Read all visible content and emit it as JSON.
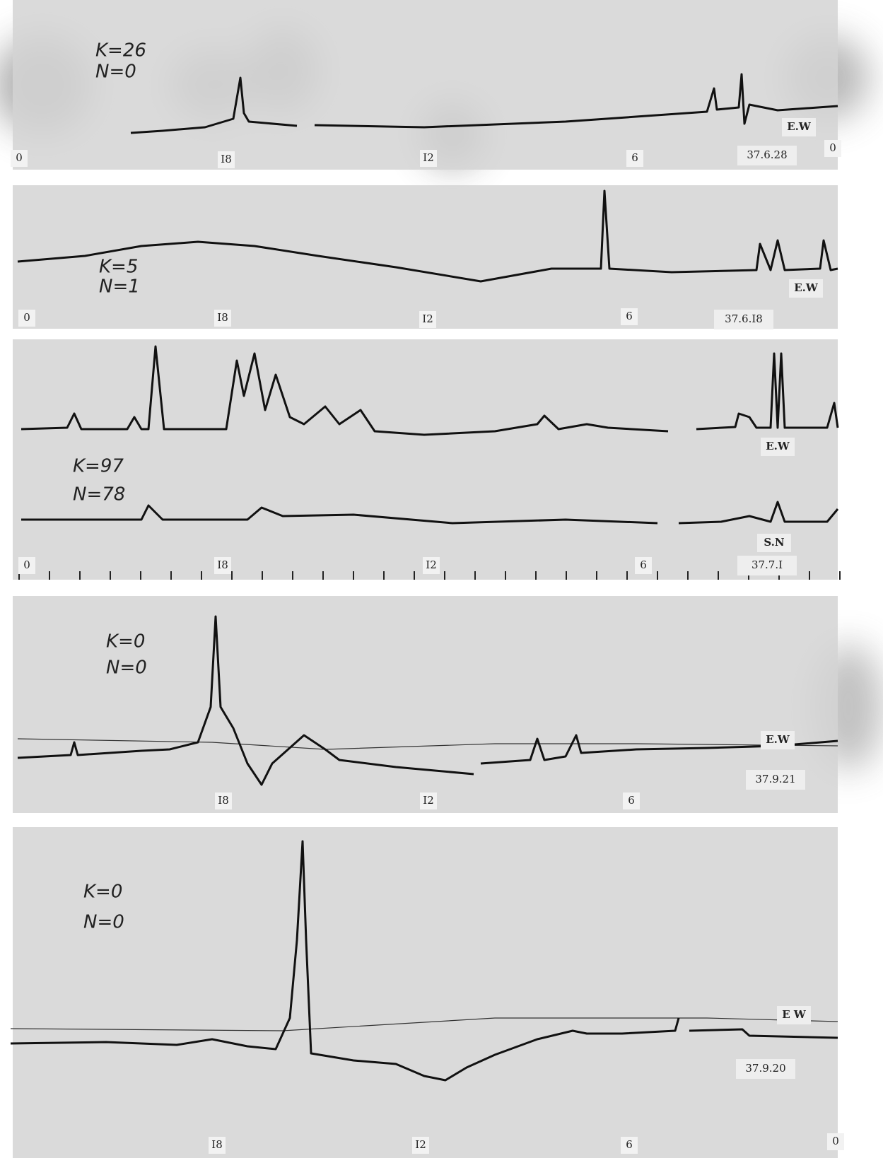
{
  "panels": [
    {
      "annotations": [
        "K=26",
        "N=0"
      ],
      "components": [
        "E.W"
      ],
      "hour_labels": [
        "0",
        "I8",
        "I2",
        "6",
        "0"
      ],
      "date": "37.6.28"
    },
    {
      "annotations": [
        "K=5",
        "N=1"
      ],
      "components": [
        "E.W"
      ],
      "hour_labels": [
        "0",
        "I8",
        "I2",
        "6"
      ],
      "date": "37.6.I8"
    },
    {
      "annotations": [
        "K=97",
        "N=78"
      ],
      "components": [
        "E.W",
        "S.N"
      ],
      "hour_labels": [
        "0",
        "I8",
        "I2",
        "6"
      ],
      "date": "37.7.I"
    },
    {
      "annotations": [
        "K=0",
        "N=0"
      ],
      "components": [
        "E.W"
      ],
      "hour_labels": [
        "I8",
        "I2",
        "6"
      ],
      "date": "37.9.21"
    },
    {
      "annotations": [
        "K=0",
        "N=0"
      ],
      "components": [
        "E W"
      ],
      "hour_labels": [
        "I8",
        "I2",
        "6",
        "0"
      ],
      "date": "37.9.20"
    }
  ]
}
